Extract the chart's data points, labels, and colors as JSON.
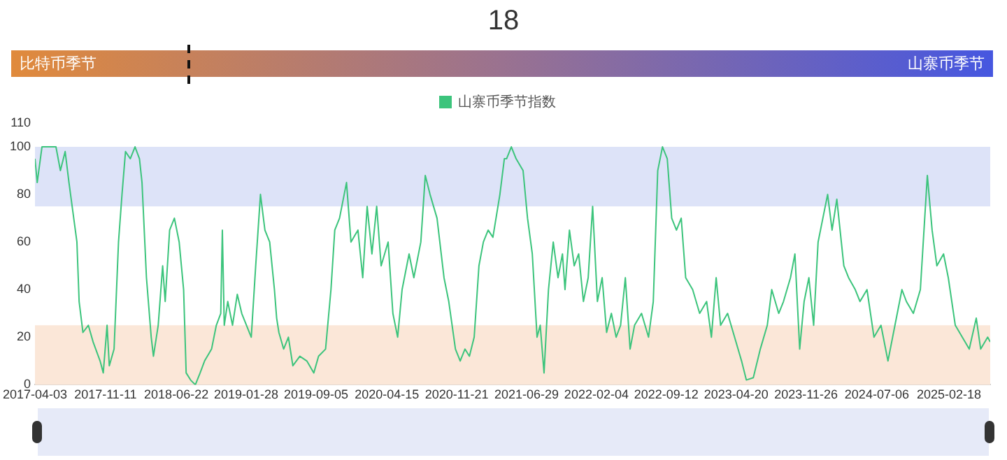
{
  "chart_data": {
    "type": "line",
    "title": "18",
    "annotations": [
      "比特币季节",
      "山寨币季节"
    ],
    "legend": "top",
    "xlim": [
      "2017-04-03",
      "2025-06-28"
    ],
    "xticks": [
      "2017-04-03",
      "2017-11-11",
      "2018-06-22",
      "2019-01-28",
      "2019-09-05",
      "2020-04-15",
      "2020-11-21",
      "2021-06-29",
      "2022-02-04",
      "2022-09-12",
      "2023-04-20",
      "2023-11-26",
      "2024-07-06",
      "2025-02-18"
    ],
    "ylim": [
      0,
      110
    ],
    "yticks": [
      0,
      20,
      40,
      60,
      80,
      100,
      110
    ],
    "bands": [
      {
        "axis": "y",
        "from": 75,
        "to": 100,
        "color": "#dde3f8"
      },
      {
        "axis": "y",
        "from": 0,
        "to": 25,
        "color": "#fbe7d8"
      }
    ],
    "series": [
      {
        "name": "山寨币季节指数",
        "color": "#3cc47c",
        "x": [
          "2017-04-03",
          "2017-04-10",
          "2017-04-25",
          "2017-06-08",
          "2017-06-22",
          "2017-07-07",
          "2017-07-19",
          "2017-07-29",
          "2017-08-13",
          "2017-08-20",
          "2017-09-01",
          "2017-09-18",
          "2017-10-03",
          "2017-10-25",
          "2017-11-04",
          "2017-11-16",
          "2017-11-23",
          "2017-12-08",
          "2017-12-22",
          "2018-01-02",
          "2018-01-13",
          "2018-01-28",
          "2018-02-12",
          "2018-02-26",
          "2018-03-06",
          "2018-03-20",
          "2018-04-04",
          "2018-04-11",
          "2018-04-26",
          "2018-05-10",
          "2018-05-18",
          "2018-06-01",
          "2018-06-16",
          "2018-07-01",
          "2018-07-15",
          "2018-07-23",
          "2018-08-06",
          "2018-08-21",
          "2018-09-05",
          "2018-09-19",
          "2018-10-11",
          "2018-10-26",
          "2018-11-09",
          "2018-11-14",
          "2018-11-20",
          "2018-12-01",
          "2018-12-16",
          "2018-12-31",
          "2019-01-14",
          "2019-01-29",
          "2019-02-13",
          "2019-02-27",
          "2019-03-14",
          "2019-03-28",
          "2019-04-12",
          "2019-04-27",
          "2019-05-04",
          "2019-05-11",
          "2019-05-26",
          "2019-06-10",
          "2019-06-24",
          "2019-07-16",
          "2019-08-07",
          "2019-08-29",
          "2019-09-13",
          "2019-10-05",
          "2019-10-22",
          "2019-11-03",
          "2019-11-18",
          "2019-12-10",
          "2019-12-24",
          "2020-01-15",
          "2020-01-30",
          "2020-02-13",
          "2020-02-28",
          "2020-03-14",
          "2020-03-28",
          "2020-04-19",
          "2020-05-04",
          "2020-05-19",
          "2020-06-02",
          "2020-06-24",
          "2020-07-09",
          "2020-07-31",
          "2020-08-14",
          "2020-08-29",
          "2020-09-20",
          "2020-10-12",
          "2020-10-27",
          "2020-11-17",
          "2020-12-02",
          "2020-12-17",
          "2020-12-31",
          "2021-01-15",
          "2021-01-30",
          "2021-02-13",
          "2021-02-28",
          "2021-03-15",
          "2021-04-06",
          "2021-04-20",
          "2021-04-27",
          "2021-05-12",
          "2021-05-27",
          "2021-06-18",
          "2021-07-02",
          "2021-07-17",
          "2021-08-01",
          "2021-08-11",
          "2021-08-23",
          "2021-09-06",
          "2021-09-21",
          "2021-10-06",
          "2021-10-20",
          "2021-10-28",
          "2021-11-11",
          "2021-11-26",
          "2021-12-10",
          "2021-12-25",
          "2022-01-09",
          "2022-01-23",
          "2022-02-07",
          "2022-02-22",
          "2022-03-08",
          "2022-03-23",
          "2022-04-07",
          "2022-04-21",
          "2022-05-06",
          "2022-05-21",
          "2022-06-04",
          "2022-06-26",
          "2022-07-18",
          "2022-08-02",
          "2022-08-16",
          "2022-08-31",
          "2022-09-15",
          "2022-09-29",
          "2022-10-14",
          "2022-10-29",
          "2022-11-12",
          "2022-12-04",
          "2022-12-26",
          "2023-01-17",
          "2023-02-01",
          "2023-02-16",
          "2023-03-02",
          "2023-03-24",
          "2023-04-15",
          "2023-05-07",
          "2023-05-22",
          "2023-06-13",
          "2023-07-05",
          "2023-07-27",
          "2023-08-10",
          "2023-09-01",
          "2023-09-16",
          "2023-10-08",
          "2023-10-22",
          "2023-11-06",
          "2023-11-20",
          "2023-12-05",
          "2023-12-20",
          "2024-01-03",
          "2024-01-18",
          "2024-02-02",
          "2024-02-16",
          "2024-03-02",
          "2024-03-24",
          "2024-04-08",
          "2024-04-29",
          "2024-05-14",
          "2024-06-05",
          "2024-06-27",
          "2024-07-19",
          "2024-08-10",
          "2024-09-01",
          "2024-09-23",
          "2024-10-07",
          "2024-10-29",
          "2024-11-20",
          "2024-12-12",
          "2024-12-27",
          "2025-01-11",
          "2025-02-01",
          "2025-02-16",
          "2025-03-10",
          "2025-04-01",
          "2025-04-23",
          "2025-05-15",
          "2025-05-29",
          "2025-06-20",
          "2025-06-28"
        ],
        "values": [
          95,
          85,
          100,
          100,
          90,
          98,
          85,
          75,
          60,
          35,
          22,
          25,
          18,
          10,
          5,
          25,
          8,
          15,
          60,
          80,
          98,
          95,
          100,
          95,
          85,
          45,
          20,
          12,
          25,
          50,
          35,
          65,
          70,
          60,
          40,
          5,
          2,
          0,
          5,
          10,
          15,
          25,
          30,
          65,
          25,
          35,
          25,
          38,
          30,
          25,
          20,
          50,
          80,
          65,
          60,
          40,
          28,
          22,
          15,
          20,
          8,
          12,
          10,
          5,
          12,
          15,
          40,
          65,
          70,
          85,
          60,
          65,
          45,
          75,
          55,
          75,
          50,
          60,
          30,
          20,
          40,
          55,
          45,
          60,
          88,
          80,
          70,
          45,
          35,
          15,
          10,
          15,
          12,
          20,
          50,
          60,
          65,
          62,
          80,
          95,
          95,
          100,
          95,
          90,
          70,
          55,
          20,
          25,
          5,
          40,
          60,
          45,
          55,
          40,
          65,
          50,
          55,
          35,
          45,
          75,
          35,
          45,
          22,
          30,
          20,
          25,
          45,
          15,
          25,
          30,
          20,
          35,
          90,
          100,
          95,
          70,
          65,
          70,
          45,
          40,
          30,
          35,
          20,
          45,
          25,
          30,
          20,
          10,
          2,
          3,
          15,
          25,
          40,
          30,
          35,
          45,
          55,
          15,
          35,
          45,
          25,
          60,
          70,
          80,
          65,
          78,
          50,
          45,
          40,
          35,
          40,
          20,
          25,
          10,
          25,
          40,
          35,
          30,
          40,
          88,
          65,
          50,
          55,
          45,
          25,
          20,
          15,
          28,
          15,
          20,
          18
        ]
      }
    ]
  }
}
